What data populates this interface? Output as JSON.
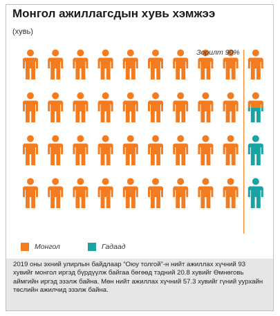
{
  "header": {
    "title": "Монгол ажиллагсдын хувь хэмжээ",
    "subtitle": "(хувь)"
  },
  "chart_data": {
    "type": "pictogram",
    "rows": 4,
    "columns": 10,
    "target_label": "Зорилт 90%",
    "target_value": 90,
    "series": [
      {
        "name": "Монгол",
        "value": 93,
        "color": "#f47c20"
      },
      {
        "name": "Гадаад",
        "value": 7,
        "color": "#1aa3a3"
      }
    ],
    "last_column_fill": [
      1.0,
      0.55,
      0.0,
      0.0
    ]
  },
  "legend": [
    {
      "label": "Монгол",
      "color": "#f47c20"
    },
    {
      "label": "Гадаад",
      "color": "#1aa3a3"
    }
  ],
  "footer": {
    "text": "2019 оны эхний улирлын байдлаар “Оюу толгой”-н нийт ажиллах хүчний 93 хувийг монгол иргэд бүрдүүлж байгаа бөгөөд тэдний 20.8 хувийг Өмнөговь аймгийн иргэд эзэлж байна. Мөн нийт ажиллах хүчний 57.3 хувийг гүний уурхайн төслийн ажилчид эзэлж байна."
  }
}
